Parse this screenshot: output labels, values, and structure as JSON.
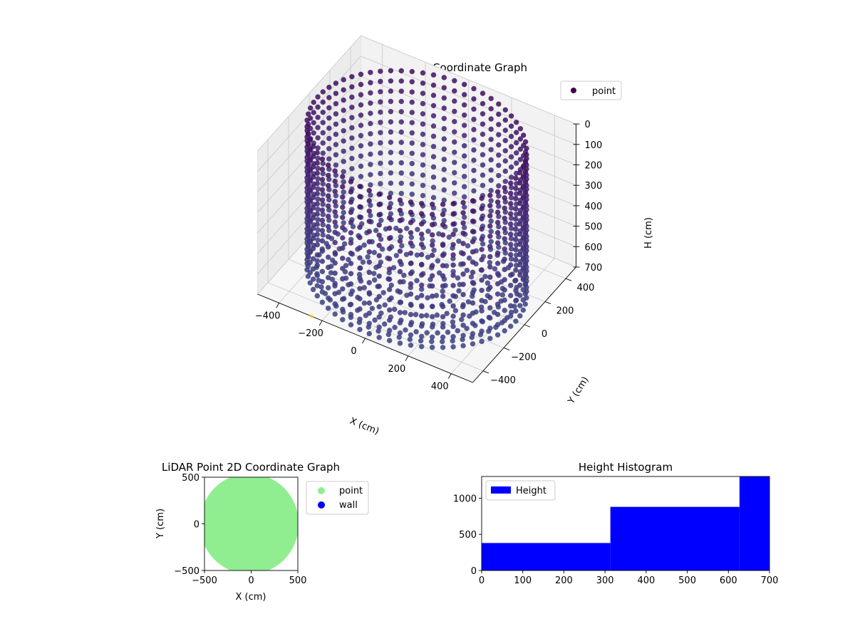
{
  "chart_data": [
    {
      "type": "scatter",
      "projection": "3d",
      "title": "LiDAR Point 3D Coordinate Graph",
      "xlabel": "X (cm)",
      "ylabel": "Y (cm)",
      "zlabel": "H (cm)",
      "xlim": [
        -500,
        500
      ],
      "ylim": [
        -500,
        500
      ],
      "zlim": [
        0,
        700
      ],
      "zaxis_inverted": true,
      "xticks": [
        -400,
        -200,
        0,
        200,
        400
      ],
      "yticks": [
        -400,
        -200,
        0,
        200,
        400
      ],
      "zticks": [
        0,
        100,
        200,
        300,
        400,
        500,
        600,
        700
      ],
      "grid": true,
      "legend": {
        "position": "upper-right",
        "entries": [
          "point"
        ]
      },
      "colormap": "viridis",
      "series": [
        {
          "name": "point",
          "marker_color": "#440154",
          "shape": "cylindrical wall",
          "radius_cm": 460,
          "wall_heights_cm": [
            0,
            50,
            100,
            150,
            200,
            250,
            300,
            350,
            400,
            450,
            500,
            550,
            600,
            650,
            700
          ],
          "points_per_ring": 64,
          "floor_rings_radius_cm": [
            0,
            60,
            120,
            180,
            240,
            300,
            360,
            420
          ],
          "floor_height_cm": 700,
          "outlier": {
            "x": -250,
            "y": -500,
            "z": 700
          }
        }
      ]
    },
    {
      "type": "scatter",
      "title": "LiDAR Point 2D Coordinate Graph",
      "xlabel": "X (cm)",
      "ylabel": "Y (cm)",
      "xlim": [
        -500,
        500
      ],
      "ylim": [
        -500,
        500
      ],
      "xticks": [
        -500,
        0,
        500
      ],
      "yticks": [
        -500,
        0,
        500
      ],
      "legend": {
        "position": "outside-right",
        "entries": [
          "point",
          "wall"
        ]
      },
      "series": [
        {
          "name": "point",
          "color": "#90ee90",
          "region": "filled disc, radius 500 cm"
        },
        {
          "name": "wall",
          "color": "#0000ff",
          "points": []
        }
      ]
    },
    {
      "type": "bar",
      "subtype": "histogram",
      "title": "Height Histogram",
      "xlabel": "",
      "ylabel": "",
      "xlim": [
        0,
        700
      ],
      "ylim": [
        0,
        1300
      ],
      "xticks": [
        0,
        100,
        200,
        300,
        400,
        500,
        600,
        700
      ],
      "yticks": [
        0,
        500,
        1000
      ],
      "legend": {
        "position": "upper-left",
        "entries": [
          "Height"
        ]
      },
      "color": "#0000ff",
      "bins": [
        {
          "start": 0,
          "end": 313,
          "count": 380
        },
        {
          "start": 313,
          "end": 627,
          "count": 880
        },
        {
          "start": 627,
          "end": 700,
          "count": 1300
        }
      ]
    }
  ]
}
